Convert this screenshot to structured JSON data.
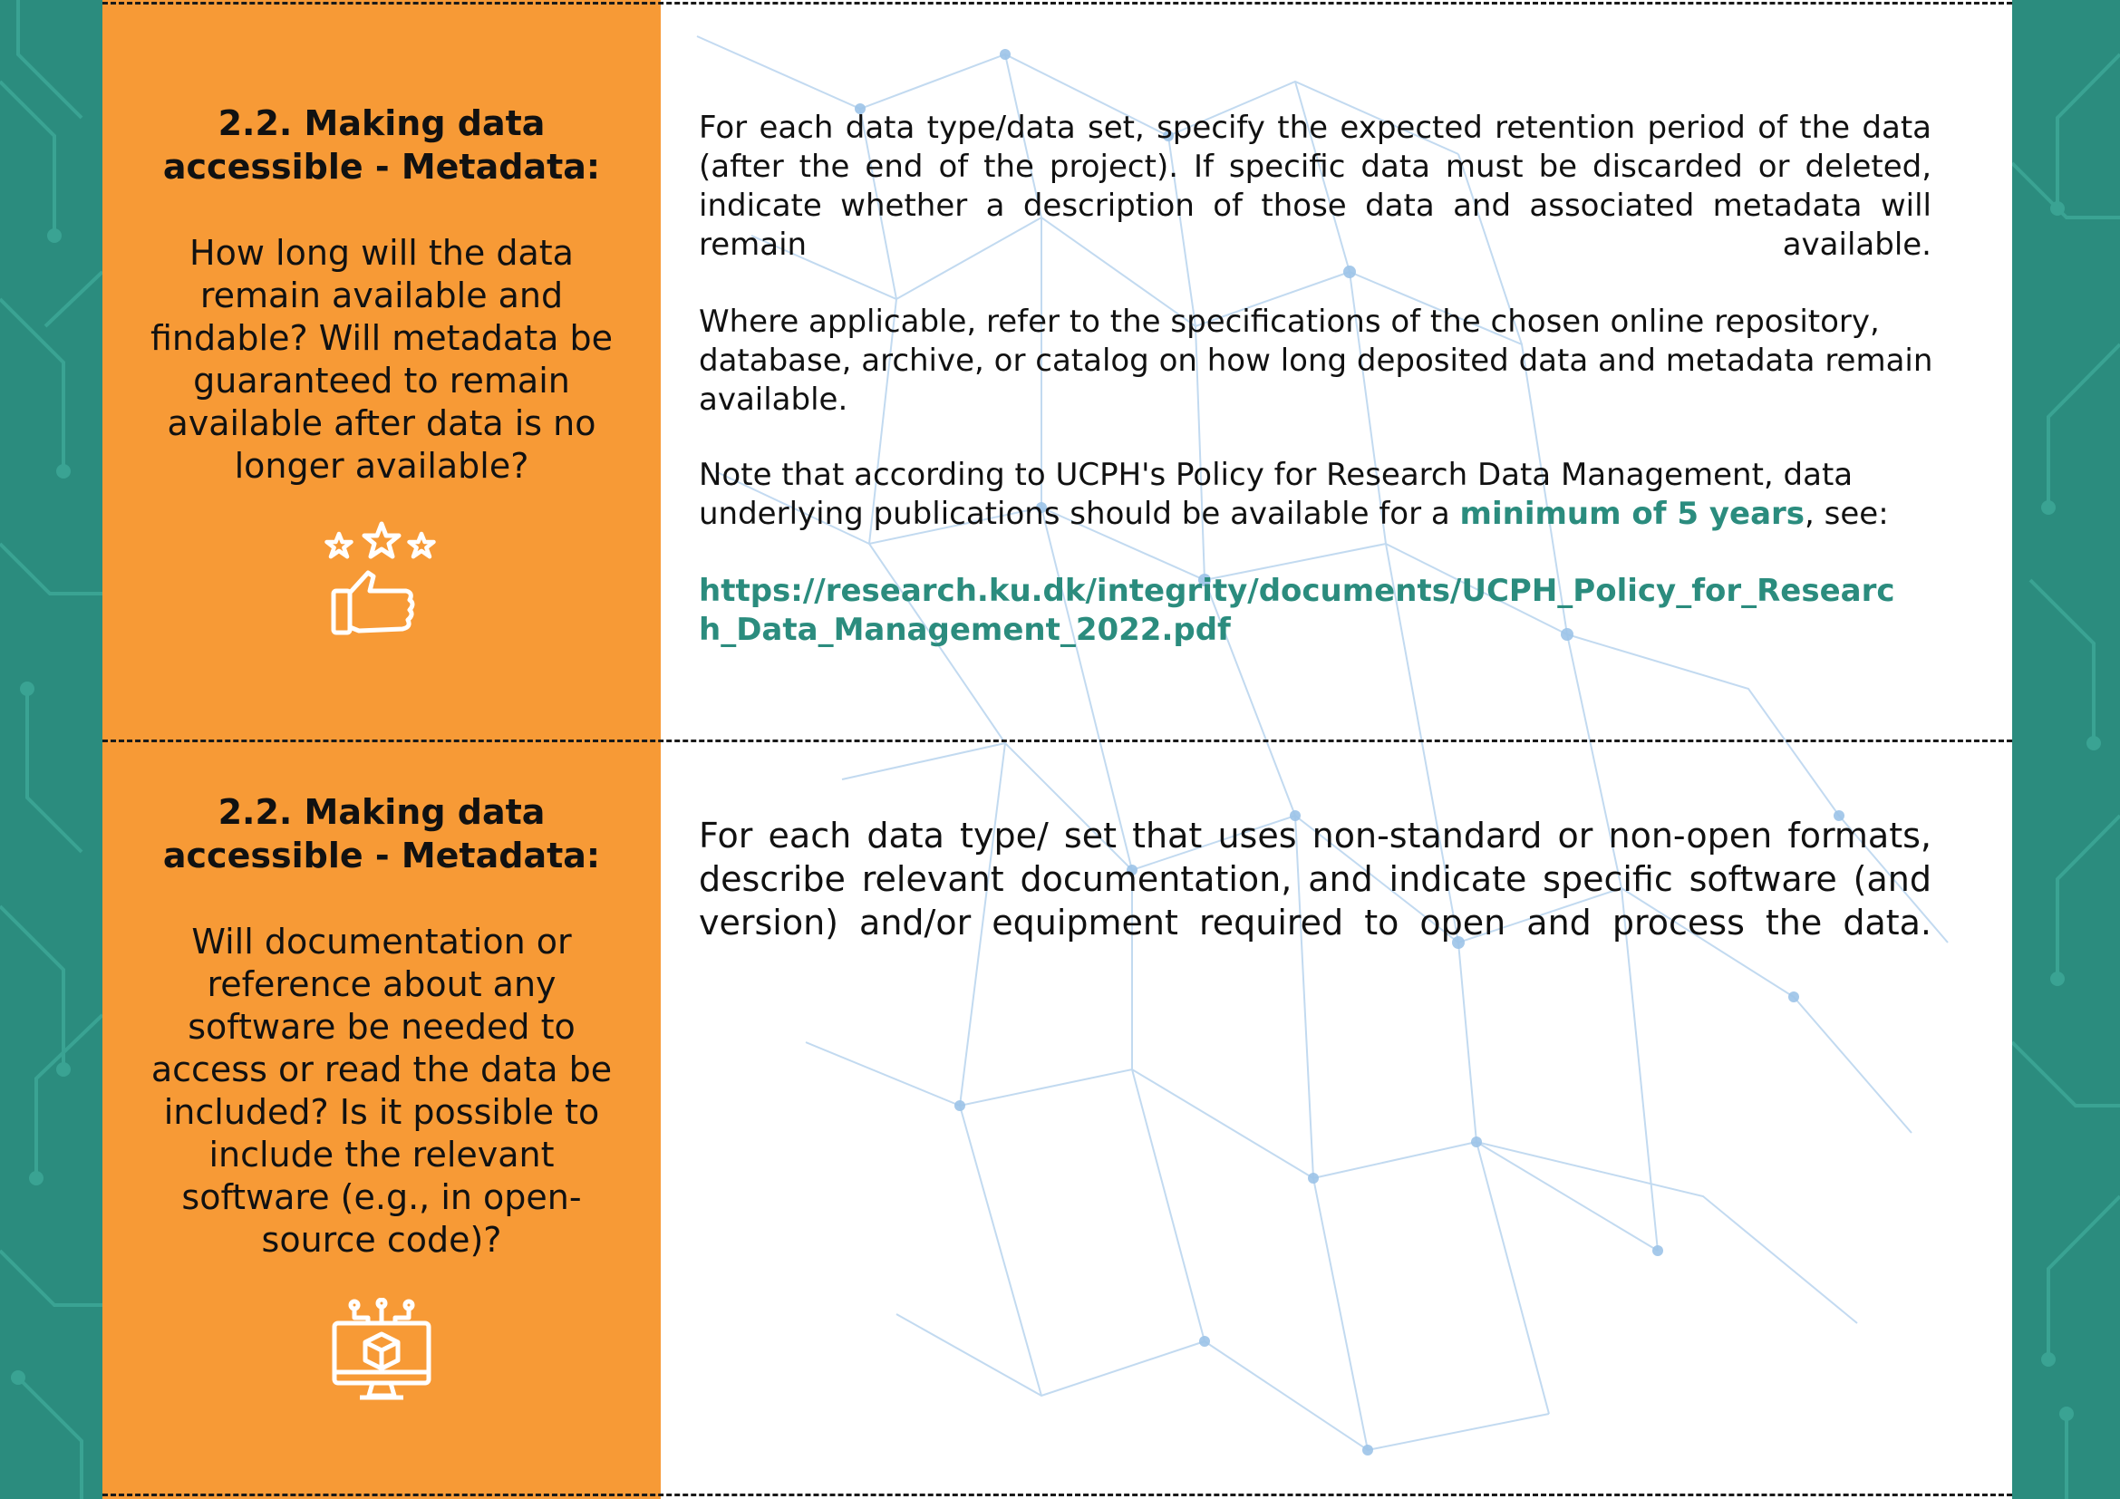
{
  "theme": {
    "accent": "#2b8c7e",
    "question_panel": "#f79a36",
    "page_bg": "#ffffff"
  },
  "sections": [
    {
      "heading": "2.2. Making data accessible - Metadata:",
      "question": "How long will the data remain available and findable? Will metadata be guaranteed to remain available after data is no longer available?",
      "icon": "thumbs-up-stars-icon",
      "answer": {
        "p1": "For each data type/data set, specify the expected retention period of the data (after the end of the project). If specific data must be discarded or deleted, indicate whether a description of those data and associated metadata will remain available.",
        "p2": "Where applicable, refer to the specifications of the chosen online repository, database, archive, or catalog on how long deposited data and metadata remain available.",
        "p3_before": "Note that according to UCPH's Policy for Research Data Management, data underlying publications should be available for a ",
        "p3_highlight": "minimum of 5 years",
        "p3_after": ", see:",
        "link": "https://research.ku.dk/integrity/documents/UCPH_Policy_for_Research_Data_Management_2022.pdf"
      }
    },
    {
      "heading": "2.2. Making data accessible - Metadata:",
      "question": "Will documentation or reference about any software be needed to access or read the data be included? Is it possible to include the relevant software (e.g., in open-source code)?",
      "icon": "software-monitor-icon",
      "answer": {
        "p1": "For each data type/ set that uses non-standard or non-open formats, describe relevant documentation, and indicate specific software (and version) and/or equipment required to open and process the data."
      }
    }
  ]
}
